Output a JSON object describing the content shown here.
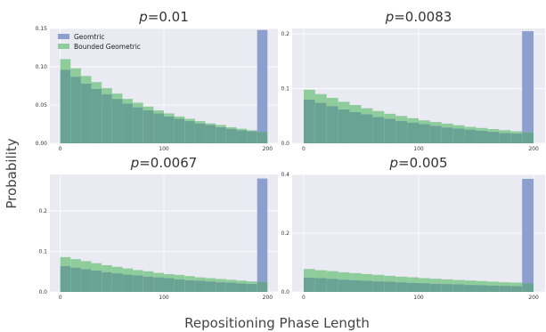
{
  "figure": {
    "ylabel": "Probability",
    "xlabel": "Repositioning Phase Length"
  },
  "colors": {
    "plot_bg": "#eaeaf2",
    "grid": "#ffffff",
    "geometric": "#8c9fcf",
    "bounded": "#8fcc9b",
    "overlap": "#6aa393"
  },
  "chart_data": [
    {
      "type": "bar",
      "title_prefix": "p",
      "title_value": "=0.01",
      "legend": [
        {
          "name": "Geomtric",
          "color": "#8c9fcf"
        },
        {
          "name": "Bounded Geometric",
          "color": "#8fcc9b"
        }
      ],
      "legend_position": "top-left",
      "xlim": [
        -10,
        210
      ],
      "ylim": [
        0,
        0.15
      ],
      "xticks": [
        0,
        100,
        200
      ],
      "yticks": [
        0.0,
        0.05,
        0.1,
        0.15
      ],
      "ytick_labels": [
        "0.00",
        "0.05",
        "0.10",
        "0.15"
      ],
      "bin_starts": [
        0,
        10,
        20,
        30,
        40,
        50,
        60,
        70,
        80,
        90,
        100,
        110,
        120,
        130,
        140,
        150,
        160,
        170,
        180,
        190
      ],
      "bin_width": 10,
      "series": [
        {
          "name": "Geomtric",
          "values": [
            0.096,
            0.087,
            0.078,
            0.071,
            0.064,
            0.058,
            0.052,
            0.047,
            0.043,
            0.039,
            0.035,
            0.032,
            0.029,
            0.026,
            0.024,
            0.021,
            0.019,
            0.017,
            0.016,
            0.148
          ]
        },
        {
          "name": "Bounded Geometric",
          "values": [
            0.11,
            0.098,
            0.088,
            0.08,
            0.072,
            0.065,
            0.058,
            0.053,
            0.048,
            0.043,
            0.039,
            0.035,
            0.032,
            0.029,
            0.026,
            0.024,
            0.021,
            0.019,
            0.017,
            0.015
          ]
        }
      ]
    },
    {
      "type": "bar",
      "title_prefix": "p",
      "title_value": "=0.0083",
      "xlim": [
        -10,
        210
      ],
      "ylim": [
        0,
        0.21
      ],
      "xticks": [
        0,
        100,
        200
      ],
      "yticks": [
        0.0,
        0.1,
        0.2
      ],
      "ytick_labels": [
        "0.0",
        "0.1",
        "0.2"
      ],
      "bin_starts": [
        0,
        10,
        20,
        30,
        40,
        50,
        60,
        70,
        80,
        90,
        100,
        110,
        120,
        130,
        140,
        150,
        160,
        170,
        180,
        190
      ],
      "bin_width": 10,
      "series": [
        {
          "name": "Geomtric",
          "values": [
            0.08,
            0.074,
            0.068,
            0.062,
            0.057,
            0.053,
            0.048,
            0.045,
            0.041,
            0.038,
            0.035,
            0.032,
            0.029,
            0.027,
            0.025,
            0.023,
            0.021,
            0.019,
            0.018,
            0.205
          ]
        },
        {
          "name": "Bounded Geometric",
          "values": [
            0.098,
            0.09,
            0.083,
            0.076,
            0.07,
            0.064,
            0.059,
            0.054,
            0.05,
            0.046,
            0.042,
            0.039,
            0.036,
            0.033,
            0.03,
            0.028,
            0.026,
            0.024,
            0.022,
            0.02
          ]
        }
      ]
    },
    {
      "type": "bar",
      "title_prefix": "p",
      "title_value": "=0.0067",
      "xlim": [
        -10,
        210
      ],
      "ylim": [
        0,
        0.29
      ],
      "xticks": [
        0,
        100,
        200
      ],
      "yticks": [
        0.0,
        0.1,
        0.2
      ],
      "ytick_labels": [
        "0.0",
        "0.1",
        "0.2"
      ],
      "bin_starts": [
        0,
        10,
        20,
        30,
        40,
        50,
        60,
        70,
        80,
        90,
        100,
        110,
        120,
        130,
        140,
        150,
        160,
        170,
        180,
        190
      ],
      "bin_width": 10,
      "series": [
        {
          "name": "Geomtric",
          "values": [
            0.064,
            0.06,
            0.056,
            0.053,
            0.049,
            0.046,
            0.043,
            0.041,
            0.038,
            0.036,
            0.034,
            0.031,
            0.029,
            0.028,
            0.026,
            0.024,
            0.023,
            0.021,
            0.02,
            0.28
          ]
        },
        {
          "name": "Bounded Geometric",
          "values": [
            0.086,
            0.081,
            0.076,
            0.071,
            0.066,
            0.062,
            0.058,
            0.054,
            0.051,
            0.047,
            0.044,
            0.042,
            0.039,
            0.036,
            0.034,
            0.032,
            0.03,
            0.028,
            0.026,
            0.025
          ]
        }
      ]
    },
    {
      "type": "bar",
      "title_prefix": "p",
      "title_value": "=0.005",
      "xlim": [
        -10,
        210
      ],
      "ylim": [
        0,
        0.4
      ],
      "xticks": [
        0,
        100,
        200
      ],
      "yticks": [
        0.0,
        0.2,
        0.4
      ],
      "ytick_labels": [
        "0.0",
        "0.2",
        "0.4"
      ],
      "bin_starts": [
        0,
        10,
        20,
        30,
        40,
        50,
        60,
        70,
        80,
        90,
        100,
        110,
        120,
        130,
        140,
        150,
        160,
        170,
        180,
        190
      ],
      "bin_width": 10,
      "series": [
        {
          "name": "Geomtric",
          "values": [
            0.049,
            0.047,
            0.045,
            0.042,
            0.04,
            0.038,
            0.036,
            0.035,
            0.033,
            0.031,
            0.03,
            0.028,
            0.027,
            0.026,
            0.024,
            0.023,
            0.022,
            0.021,
            0.02,
            0.385
          ]
        },
        {
          "name": "Bounded Geometric",
          "values": [
            0.078,
            0.074,
            0.071,
            0.067,
            0.064,
            0.061,
            0.058,
            0.055,
            0.052,
            0.05,
            0.047,
            0.045,
            0.043,
            0.041,
            0.039,
            0.037,
            0.035,
            0.033,
            0.032,
            0.03
          ]
        }
      ]
    }
  ]
}
